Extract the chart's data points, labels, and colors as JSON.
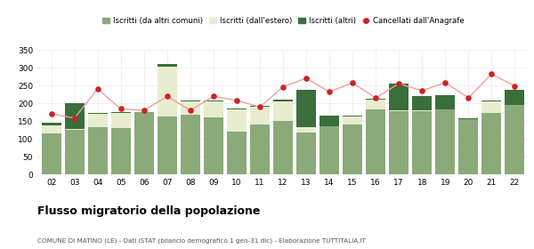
{
  "years": [
    "02",
    "03",
    "04",
    "05",
    "06",
    "07",
    "08",
    "09",
    "10",
    "11",
    "12",
    "13",
    "14",
    "15",
    "16",
    "17",
    "18",
    "19",
    "20",
    "21",
    "22"
  ],
  "iscritti_comuni": [
    116,
    126,
    132,
    130,
    174,
    162,
    168,
    160,
    121,
    140,
    150,
    118,
    136,
    140,
    182,
    178,
    178,
    183,
    156,
    172,
    196
  ],
  "iscritti_estero": [
    22,
    2,
    38,
    42,
    0,
    140,
    38,
    45,
    62,
    50,
    55,
    15,
    0,
    22,
    28,
    2,
    2,
    0,
    0,
    34,
    0
  ],
  "iscritti_altri": [
    8,
    72,
    2,
    2,
    2,
    8,
    2,
    2,
    2,
    2,
    5,
    105,
    30,
    2,
    2,
    75,
    40,
    40,
    2,
    2,
    42
  ],
  "cancellati": [
    170,
    158,
    240,
    184,
    180,
    219,
    180,
    219,
    208,
    189,
    246,
    270,
    232,
    257,
    215,
    255,
    235,
    258,
    215,
    282,
    248
  ],
  "color_comuni": "#8aaa7a",
  "color_estero": "#e8edcf",
  "color_altri": "#3a6e3a",
  "color_cancellati": "#cc2222",
  "color_cancellati_line": "#f0a0a0",
  "ylim": [
    0,
    350
  ],
  "yticks": [
    0,
    50,
    100,
    150,
    200,
    250,
    300,
    350
  ],
  "title": "Flusso migratorio della popolazione",
  "subtitle": "COMUNE DI MATINO (LE) - Dati ISTAT (bilancio demografico 1 gen-31 dic) - Elaborazione TUTTITALIA.IT",
  "legend_labels": [
    "Iscritti (da altri comuni)",
    "Iscritti (dall'estero)",
    "Iscritti (altri)",
    "Cancellati dall'Anagrafe"
  ],
  "bg_color": "#ffffff"
}
